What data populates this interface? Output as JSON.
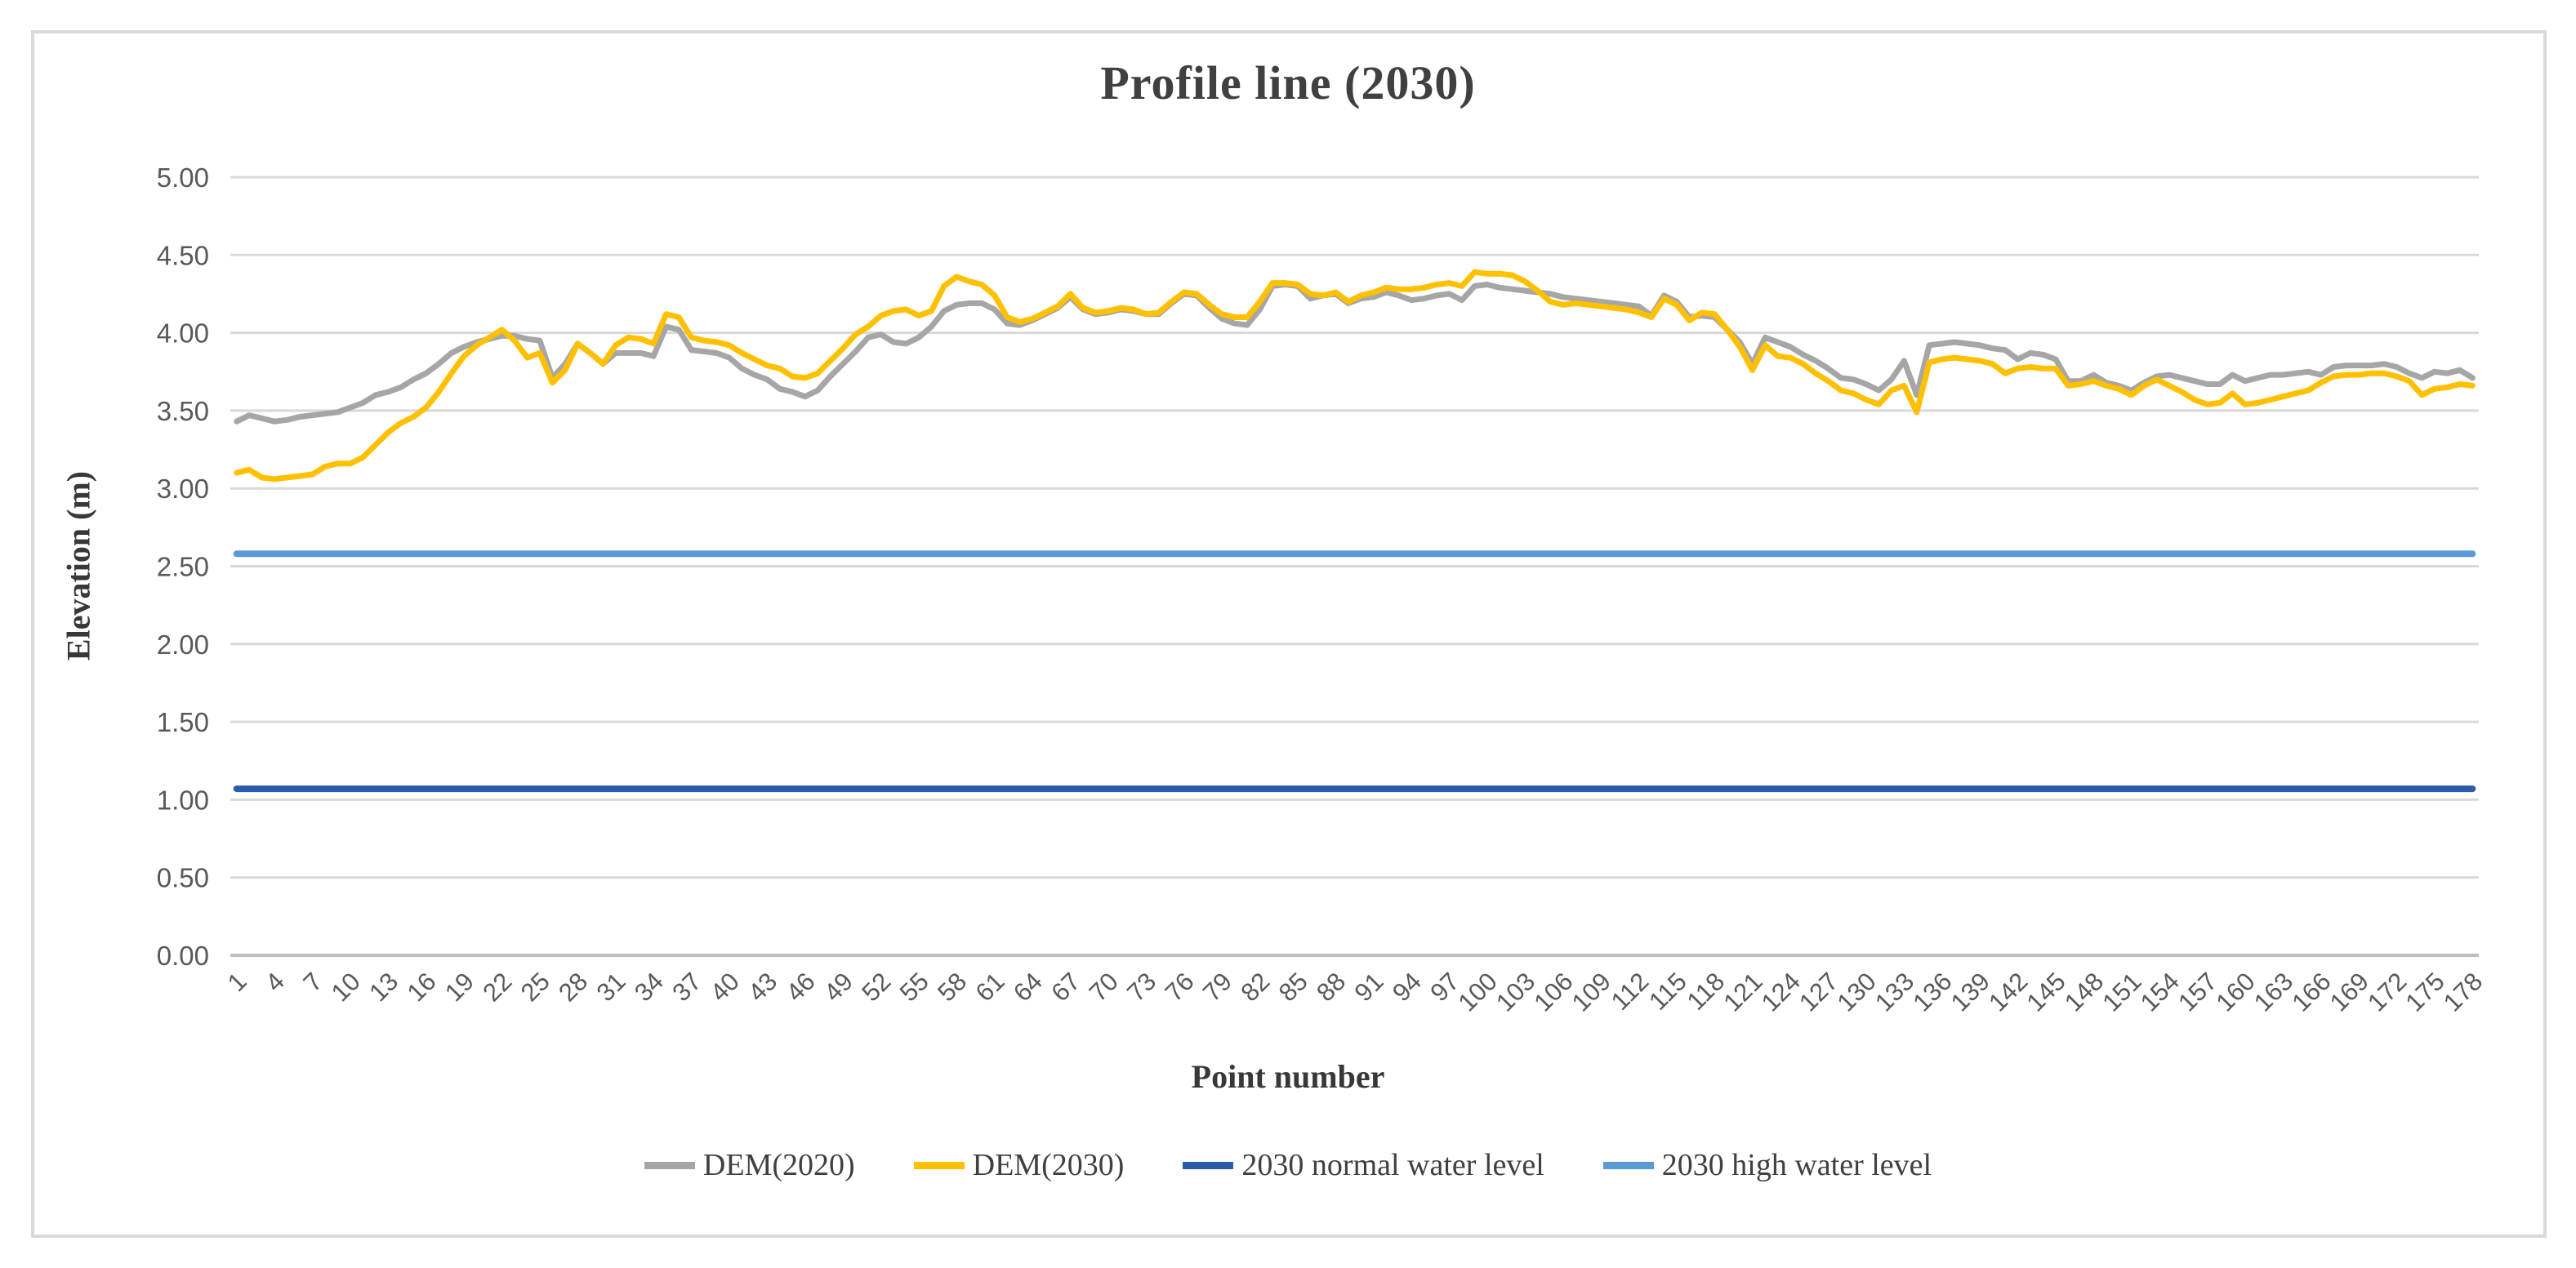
{
  "chart_data": {
    "type": "line",
    "title": "Profile line (2030)",
    "xlabel": "Point number",
    "ylabel": "Elevation (m)",
    "ylim": [
      0.0,
      5.0
    ],
    "ytick_step": 0.5,
    "ytick_labels": [
      "5.00",
      "4.50",
      "4.00",
      "3.50",
      "3.00",
      "2.50",
      "2.00",
      "1.50",
      "1.00",
      "0.50",
      "0.00"
    ],
    "xtick_labels": [
      "1",
      "4",
      "7",
      "10",
      "13",
      "16",
      "19",
      "22",
      "25",
      "28",
      "31",
      "34",
      "37",
      "40",
      "43",
      "46",
      "49",
      "52",
      "55",
      "58",
      "61",
      "64",
      "67",
      "70",
      "73",
      "76",
      "79",
      "82",
      "85",
      "88",
      "91",
      "94",
      "97",
      "100",
      "103",
      "106",
      "109",
      "112",
      "115",
      "118",
      "121",
      "124",
      "127",
      "130",
      "133",
      "136",
      "139",
      "142",
      "145",
      "148",
      "151",
      "154",
      "157",
      "160",
      "163",
      "166",
      "169",
      "172",
      "175",
      "178"
    ],
    "x_count": 178,
    "grid": true,
    "legend_position": "bottom",
    "colors": {
      "grid": "#d9d9d9",
      "axis_line": "#bfbfbf",
      "tick_text": "#595959",
      "title_text": "#404040",
      "frame_border": "#d9d9d9"
    },
    "series": [
      {
        "name": "DEM(2020)",
        "color": "#a6a6a6",
        "values": [
          3.43,
          3.47,
          3.45,
          3.43,
          3.44,
          3.46,
          3.47,
          3.48,
          3.49,
          3.52,
          3.55,
          3.6,
          3.62,
          3.65,
          3.7,
          3.74,
          3.8,
          3.87,
          3.91,
          3.94,
          3.96,
          3.98,
          3.98,
          3.96,
          3.95,
          3.71,
          3.8,
          3.93,
          3.87,
          3.8,
          3.87,
          3.87,
          3.87,
          3.85,
          4.04,
          4.02,
          3.89,
          3.88,
          3.87,
          3.84,
          3.77,
          3.73,
          3.7,
          3.64,
          3.62,
          3.59,
          3.63,
          3.72,
          3.8,
          3.88,
          3.97,
          3.99,
          3.94,
          3.93,
          3.97,
          4.04,
          4.14,
          4.18,
          4.19,
          4.19,
          4.15,
          4.06,
          4.05,
          4.08,
          4.12,
          4.16,
          4.23,
          4.15,
          4.12,
          4.13,
          4.15,
          4.14,
          4.12,
          4.12,
          4.19,
          4.25,
          4.24,
          4.16,
          4.09,
          4.06,
          4.05,
          4.15,
          4.3,
          4.31,
          4.3,
          4.22,
          4.24,
          4.25,
          4.19,
          4.22,
          4.23,
          4.26,
          4.24,
          4.21,
          4.22,
          4.24,
          4.25,
          4.21,
          4.3,
          4.31,
          4.29,
          4.28,
          4.27,
          4.26,
          4.25,
          4.23,
          4.22,
          4.21,
          4.2,
          4.19,
          4.18,
          4.17,
          4.11,
          4.24,
          4.2,
          4.1,
          4.11,
          4.1,
          4.02,
          3.94,
          3.8,
          3.97,
          3.94,
          3.91,
          3.86,
          3.82,
          3.77,
          3.71,
          3.7,
          3.67,
          3.63,
          3.7,
          3.82,
          3.6,
          3.92,
          3.93,
          3.94,
          3.93,
          3.92,
          3.9,
          3.89,
          3.83,
          3.87,
          3.86,
          3.83,
          3.69,
          3.69,
          3.73,
          3.68,
          3.66,
          3.63,
          3.68,
          3.72,
          3.73,
          3.71,
          3.69,
          3.67,
          3.67,
          3.73,
          3.69,
          3.71,
          3.73,
          3.73,
          3.74,
          3.75,
          3.73,
          3.78,
          3.79,
          3.79,
          3.79,
          3.8,
          3.78,
          3.74,
          3.71,
          3.75,
          3.74,
          3.76,
          3.71
        ]
      },
      {
        "name": "DEM(2030)",
        "color": "#ffc000",
        "values": [
          3.1,
          3.12,
          3.07,
          3.06,
          3.07,
          3.08,
          3.09,
          3.14,
          3.16,
          3.16,
          3.2,
          3.28,
          3.36,
          3.42,
          3.46,
          3.52,
          3.62,
          3.74,
          3.85,
          3.92,
          3.97,
          4.02,
          3.95,
          3.84,
          3.87,
          3.68,
          3.76,
          3.93,
          3.87,
          3.8,
          3.92,
          3.97,
          3.96,
          3.93,
          4.12,
          4.1,
          3.97,
          3.95,
          3.94,
          3.92,
          3.87,
          3.83,
          3.79,
          3.77,
          3.72,
          3.71,
          3.74,
          3.82,
          3.9,
          3.99,
          4.04,
          4.11,
          4.14,
          4.15,
          4.11,
          4.14,
          4.3,
          4.36,
          4.33,
          4.31,
          4.24,
          4.1,
          4.07,
          4.09,
          4.13,
          4.17,
          4.25,
          4.16,
          4.13,
          4.14,
          4.16,
          4.15,
          4.12,
          4.13,
          4.2,
          4.26,
          4.25,
          4.18,
          4.12,
          4.1,
          4.1,
          4.2,
          4.32,
          4.32,
          4.31,
          4.25,
          4.24,
          4.26,
          4.2,
          4.24,
          4.26,
          4.29,
          4.28,
          4.28,
          4.29,
          4.31,
          4.32,
          4.3,
          4.39,
          4.38,
          4.38,
          4.37,
          4.33,
          4.27,
          4.2,
          4.18,
          4.19,
          4.18,
          4.17,
          4.16,
          4.15,
          4.13,
          4.1,
          4.22,
          4.18,
          4.08,
          4.13,
          4.12,
          4.02,
          3.91,
          3.76,
          3.92,
          3.85,
          3.84,
          3.8,
          3.74,
          3.69,
          3.63,
          3.61,
          3.57,
          3.54,
          3.63,
          3.66,
          3.49,
          3.81,
          3.83,
          3.84,
          3.83,
          3.82,
          3.8,
          3.74,
          3.77,
          3.78,
          3.77,
          3.77,
          3.66,
          3.67,
          3.69,
          3.66,
          3.64,
          3.6,
          3.66,
          3.7,
          3.66,
          3.62,
          3.57,
          3.54,
          3.55,
          3.61,
          3.54,
          3.55,
          3.57,
          3.59,
          3.61,
          3.63,
          3.68,
          3.72,
          3.73,
          3.73,
          3.74,
          3.74,
          3.72,
          3.69,
          3.6,
          3.64,
          3.65,
          3.67,
          3.66
        ]
      },
      {
        "name": "2030 normal water level",
        "color": "#2a5caa",
        "value": 1.07
      },
      {
        "name": "2030 high water level",
        "color": "#5b9bd5",
        "value": 2.58
      }
    ]
  }
}
